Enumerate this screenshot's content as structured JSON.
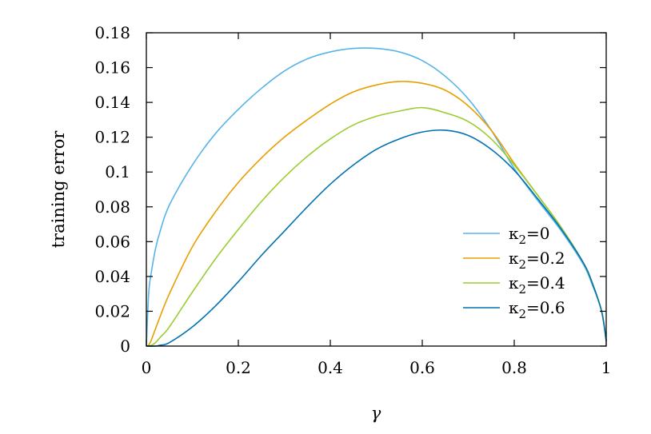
{
  "chart_data": {
    "type": "line",
    "xlabel": "γ",
    "ylabel": "training error",
    "xlim": [
      0,
      1
    ],
    "ylim": [
      0,
      0.18
    ],
    "xticks": [
      0,
      0.2,
      0.4,
      0.6,
      0.8,
      1
    ],
    "xtick_labels": [
      "0",
      "0.2",
      "0.4",
      "0.6",
      "0.8",
      "1"
    ],
    "yticks": [
      0,
      0.02,
      0.04,
      0.06,
      0.08,
      0.1,
      0.12,
      0.14,
      0.16,
      0.18
    ],
    "ytick_labels": [
      "0",
      "0.02",
      "0.04",
      "0.06",
      "0.08",
      "0.1",
      "0.12",
      "0.14",
      "0.16",
      "0.18"
    ],
    "grid": false,
    "legend_position": "lower-right",
    "x": [
      0,
      0.005,
      0.01,
      0.02,
      0.03,
      0.05,
      0.1,
      0.15,
      0.2,
      0.25,
      0.3,
      0.35,
      0.4,
      0.45,
      0.5,
      0.55,
      0.6,
      0.65,
      0.7,
      0.75,
      0.8,
      0.85,
      0.9,
      0.95,
      0.97,
      0.99,
      1
    ],
    "series": [
      {
        "name": "κ₂=0",
        "label_base": "κ",
        "label_sub": "2",
        "label_tail": "=0",
        "color": "#56b4e9",
        "values": [
          0,
          0.03,
          0.041,
          0.056,
          0.066,
          0.081,
          0.104,
          0.122,
          0.136,
          0.148,
          0.158,
          0.165,
          0.169,
          0.171,
          0.171,
          0.169,
          0.164,
          0.155,
          0.142,
          0.124,
          0.102,
          0.084,
          0.067,
          0.047,
          0.035,
          0.02,
          0.003
        ]
      },
      {
        "name": "κ₂=0.2",
        "label_base": "κ",
        "label_sub": "2",
        "label_tail": "=0.2",
        "color": "#e69f00",
        "values": [
          0,
          0.0005,
          0.003,
          0.01,
          0.017,
          0.03,
          0.057,
          0.077,
          0.094,
          0.108,
          0.12,
          0.13,
          0.139,
          0.146,
          0.15,
          0.152,
          0.151,
          0.147,
          0.138,
          0.124,
          0.105,
          0.087,
          0.069,
          0.048,
          0.036,
          0.02,
          0.003
        ]
      },
      {
        "name": "κ₂=0.4",
        "label_base": "κ",
        "label_sub": "2",
        "label_tail": "=0.4",
        "color": "#9acd32",
        "values": [
          0,
          0,
          0.0003,
          0.002,
          0.005,
          0.011,
          0.031,
          0.05,
          0.067,
          0.083,
          0.097,
          0.109,
          0.119,
          0.127,
          0.132,
          0.135,
          0.137,
          0.134,
          0.129,
          0.119,
          0.104,
          0.087,
          0.069,
          0.048,
          0.036,
          0.02,
          0.003
        ]
      },
      {
        "name": "κ₂=0.6",
        "label_base": "κ",
        "label_sub": "2",
        "label_tail": "=0.6",
        "color": "#0072b2",
        "values": [
          0,
          0,
          0,
          0,
          0.0005,
          0.002,
          0.011,
          0.023,
          0.037,
          0.052,
          0.066,
          0.08,
          0.093,
          0.104,
          0.113,
          0.119,
          0.123,
          0.124,
          0.121,
          0.113,
          0.101,
          0.085,
          0.068,
          0.048,
          0.036,
          0.02,
          0.003
        ]
      }
    ]
  }
}
